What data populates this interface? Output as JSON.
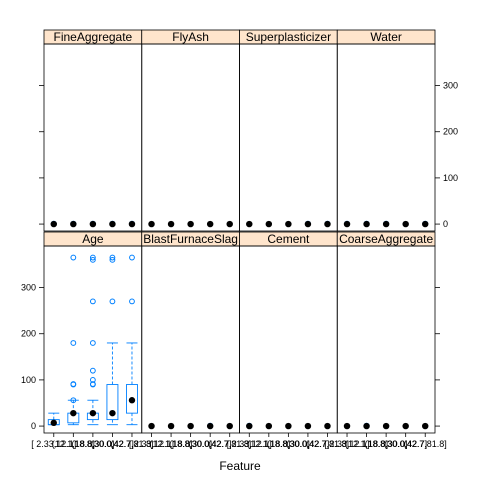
{
  "chart_data": {
    "type": "boxplot",
    "xlabel": "Feature",
    "ylabel": "",
    "ylim": [
      -15,
      390
    ],
    "y_ticks": [
      0,
      100,
      200,
      300
    ],
    "x_tick_labels": [
      "[ 2.33,12.1]",
      "(12.1,18.8]",
      "(18.8,30.0]",
      "(30.0,42.7]",
      "(42.7,81.8]"
    ],
    "strip_color": "#ffe5cc",
    "box_color": "#0080ff",
    "dot_color": "#000000",
    "layout": {
      "columns": 4,
      "rows": 2
    },
    "panels": [
      {
        "name": "FineAggregate",
        "row": 0,
        "col": 0,
        "groups": [
          {
            "median": 0,
            "q1": 0,
            "q3": 0,
            "lo": 0,
            "hi": 0,
            "outliers": [
              1
            ]
          },
          {
            "median": 0,
            "q1": 0,
            "q3": 0,
            "lo": 0,
            "hi": 0,
            "outliers": [
              1
            ]
          },
          {
            "median": 0,
            "q1": 0,
            "q3": 0,
            "lo": 0,
            "hi": 0,
            "outliers": [
              1
            ]
          },
          {
            "median": 0,
            "q1": 0,
            "q3": 0,
            "lo": 0,
            "hi": 0,
            "outliers": [
              1
            ]
          },
          {
            "median": 0,
            "q1": 0,
            "q3": 0,
            "lo": 0,
            "hi": 0,
            "outliers": [
              1
            ]
          }
        ]
      },
      {
        "name": "FlyAsh",
        "row": 0,
        "col": 1,
        "groups": [
          {
            "median": 0,
            "q1": 0,
            "q3": 0,
            "lo": 0,
            "hi": 0,
            "outliers": []
          },
          {
            "median": 0,
            "q1": 0,
            "q3": 0,
            "lo": 0,
            "hi": 0,
            "outliers": []
          },
          {
            "median": 0,
            "q1": 0,
            "q3": 0,
            "lo": 0,
            "hi": 0,
            "outliers": []
          },
          {
            "median": 0,
            "q1": 0,
            "q3": 0,
            "lo": 0,
            "hi": 0,
            "outliers": []
          },
          {
            "median": 0,
            "q1": 0,
            "q3": 0,
            "lo": 0,
            "hi": 0,
            "outliers": []
          }
        ]
      },
      {
        "name": "Superplasticizer",
        "row": 0,
        "col": 2,
        "groups": [
          {
            "median": 0,
            "q1": 0,
            "q3": 0,
            "lo": 0,
            "hi": 0,
            "outliers": []
          },
          {
            "median": 0,
            "q1": 0,
            "q3": 0,
            "lo": 0,
            "hi": 0,
            "outliers": []
          },
          {
            "median": 0,
            "q1": 0,
            "q3": 0,
            "lo": 0,
            "hi": 0,
            "outliers": []
          },
          {
            "median": 0,
            "q1": 0,
            "q3": 0,
            "lo": 0,
            "hi": 0,
            "outliers": [
              1
            ]
          },
          {
            "median": 0,
            "q1": 0,
            "q3": 0,
            "lo": 0,
            "hi": 0,
            "outliers": [
              1
            ]
          }
        ]
      },
      {
        "name": "Water",
        "row": 0,
        "col": 3,
        "groups": [
          {
            "median": 0,
            "q1": 0,
            "q3": 0,
            "lo": 0,
            "hi": 0,
            "outliers": [
              1
            ]
          },
          {
            "median": 0,
            "q1": 0,
            "q3": 0,
            "lo": 0,
            "hi": 0,
            "outliers": [
              1
            ]
          },
          {
            "median": 0,
            "q1": 0,
            "q3": 0,
            "lo": 0,
            "hi": 0,
            "outliers": [
              1
            ]
          },
          {
            "median": 0,
            "q1": 0,
            "q3": 0,
            "lo": 0,
            "hi": 0,
            "outliers": []
          },
          {
            "median": 0,
            "q1": 0,
            "q3": 0,
            "lo": 0,
            "hi": 0,
            "outliers": [
              1
            ]
          }
        ]
      },
      {
        "name": "Age",
        "row": 1,
        "col": 0,
        "groups": [
          {
            "median": 7,
            "q1": 3,
            "q3": 14,
            "lo": 3,
            "hi": 28,
            "outliers": []
          },
          {
            "median": 28,
            "q1": 7,
            "q3": 28,
            "lo": 3,
            "hi": 56,
            "outliers": [
              56,
              90,
              91,
              180,
              365
            ]
          },
          {
            "median": 28,
            "q1": 14,
            "q3": 28,
            "lo": 3,
            "hi": 56,
            "outliers": [
              90,
              91,
              100,
              120,
              180,
              270,
              360,
              365
            ]
          },
          {
            "median": 28,
            "q1": 14,
            "q3": 90,
            "lo": 3,
            "hi": 180,
            "outliers": [
              270,
              360,
              365
            ]
          },
          {
            "median": 56,
            "q1": 28,
            "q3": 90,
            "lo": 3,
            "hi": 180,
            "outliers": [
              270,
              365
            ]
          }
        ]
      },
      {
        "name": "BlastFurnaceSlag",
        "row": 1,
        "col": 1,
        "groups": [
          {
            "median": 0,
            "q1": 0,
            "q3": 0,
            "lo": 0,
            "hi": 0,
            "outliers": []
          },
          {
            "median": 0,
            "q1": 0,
            "q3": 0,
            "lo": 0,
            "hi": 0,
            "outliers": []
          },
          {
            "median": 0,
            "q1": 0,
            "q3": 0,
            "lo": 0,
            "hi": 0,
            "outliers": []
          },
          {
            "median": 0,
            "q1": 0,
            "q3": 0,
            "lo": 0,
            "hi": 0,
            "outliers": [
              1
            ]
          },
          {
            "median": 0,
            "q1": 0,
            "q3": 0,
            "lo": 0,
            "hi": 0,
            "outliers": []
          }
        ]
      },
      {
        "name": "Cement",
        "row": 1,
        "col": 2,
        "groups": [
          {
            "median": 0,
            "q1": 0,
            "q3": 0,
            "lo": 0,
            "hi": 0,
            "outliers": [
              1
            ]
          },
          {
            "median": 0,
            "q1": 0,
            "q3": 0,
            "lo": 0,
            "hi": 0,
            "outliers": []
          },
          {
            "median": 0,
            "q1": 0,
            "q3": 0,
            "lo": 0,
            "hi": 0,
            "outliers": []
          },
          {
            "median": 0,
            "q1": 0,
            "q3": 0,
            "lo": 0,
            "hi": 0,
            "outliers": []
          },
          {
            "median": 0,
            "q1": 0,
            "q3": 0,
            "lo": 0,
            "hi": 0,
            "outliers": []
          }
        ]
      },
      {
        "name": "CoarseAggregate",
        "row": 1,
        "col": 3,
        "groups": [
          {
            "median": 0,
            "q1": 0,
            "q3": 0,
            "lo": 0,
            "hi": 0,
            "outliers": []
          },
          {
            "median": 0,
            "q1": 0,
            "q3": 0,
            "lo": 0,
            "hi": 0,
            "outliers": [
              1
            ]
          },
          {
            "median": 0,
            "q1": 0,
            "q3": 0,
            "lo": 0,
            "hi": 0,
            "outliers": []
          },
          {
            "median": 0,
            "q1": 0,
            "q3": 0,
            "lo": 0,
            "hi": 0,
            "outliers": []
          },
          {
            "median": 0,
            "q1": 0,
            "q3": 0,
            "lo": 0,
            "hi": 0,
            "outliers": []
          }
        ]
      }
    ]
  }
}
